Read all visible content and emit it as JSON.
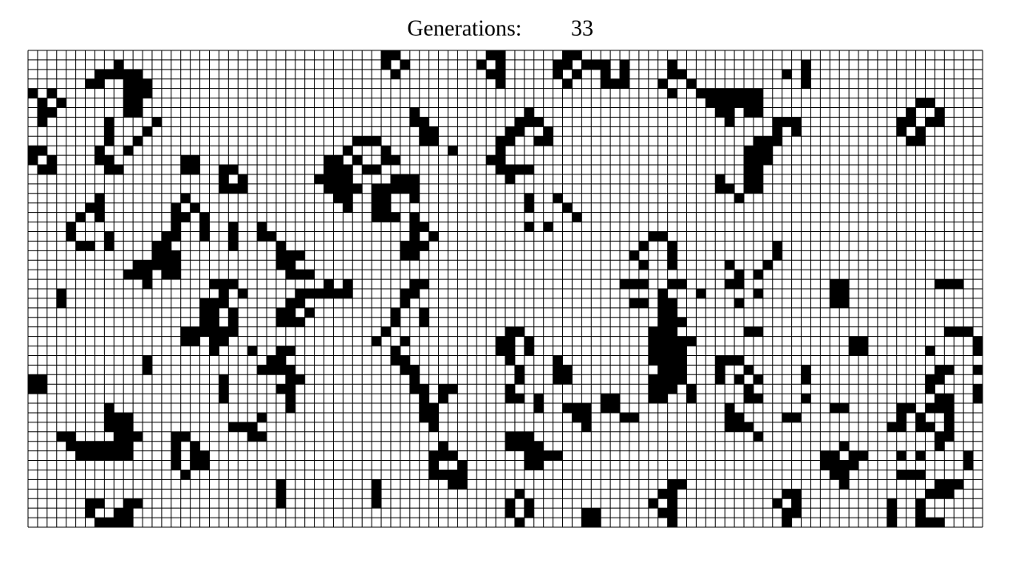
{
  "header": {
    "label": "Generations:",
    "generations": 33
  },
  "board": {
    "alive_by_row": [
      [
        37,
        38,
        48,
        49,
        56,
        57
      ],
      [
        9,
        37,
        39,
        47,
        49,
        55,
        56,
        58,
        59,
        60,
        62,
        67,
        81
      ],
      [
        7,
        8,
        9,
        10,
        11,
        38,
        48,
        49,
        55,
        57,
        60,
        62,
        67,
        68,
        79,
        81
      ],
      [
        6,
        7,
        10,
        11,
        12,
        49,
        56,
        60,
        61,
        62,
        66,
        69,
        81
      ],
      [
        0,
        2,
        10,
        11,
        12,
        67,
        70,
        71,
        72,
        73,
        74,
        75,
        76
      ],
      [
        1,
        3,
        10,
        11,
        71,
        72,
        73,
        74,
        75,
        76,
        93,
        94
      ],
      [
        1,
        2,
        10,
        11,
        40,
        52,
        72,
        73,
        75,
        76,
        92,
        95
      ],
      [
        1,
        8,
        13,
        40,
        41,
        51,
        52,
        53,
        73,
        78,
        79,
        80,
        91,
        92,
        94,
        95
      ],
      [
        8,
        12,
        41,
        42,
        50,
        51,
        54,
        78,
        80,
        91,
        93
      ],
      [
        8,
        11,
        34,
        35,
        36,
        41,
        42,
        49,
        50,
        53,
        54,
        76,
        77,
        78,
        92,
        93
      ],
      [
        0,
        1,
        7,
        10,
        33,
        37,
        44,
        49,
        75,
        76,
        77
      ],
      [
        0,
        2,
        7,
        8,
        16,
        17,
        31,
        32,
        34,
        37,
        38,
        48,
        49,
        75,
        76,
        77
      ],
      [
        1,
        2,
        8,
        9,
        16,
        17,
        20,
        21,
        31,
        32,
        33,
        35,
        36,
        49,
        50,
        51,
        52,
        75,
        76
      ],
      [
        20,
        22,
        30,
        31,
        32,
        33,
        38,
        39,
        40,
        50,
        72,
        75,
        76
      ],
      [
        20,
        21,
        22,
        31,
        32,
        33,
        34,
        36,
        37,
        38,
        39,
        40,
        72,
        73,
        75,
        76
      ],
      [
        7,
        16,
        32,
        33,
        36,
        37,
        40,
        52,
        55,
        74
      ],
      [
        6,
        7,
        15,
        17,
        33,
        36,
        37,
        52,
        56
      ],
      [
        5,
        7,
        15,
        16,
        18,
        36,
        37,
        38,
        40,
        57
      ],
      [
        4,
        15,
        18,
        21,
        24,
        40,
        41,
        52,
        54
      ],
      [
        4,
        8,
        14,
        15,
        18,
        21,
        24,
        25,
        40,
        42,
        65,
        66
      ],
      [
        5,
        6,
        8,
        13,
        14,
        21,
        26,
        39,
        40,
        41,
        64,
        67,
        78
      ],
      [
        13,
        14,
        15,
        26,
        27,
        28,
        39,
        40,
        63,
        67,
        78
      ],
      [
        11,
        12,
        13,
        14,
        15,
        26,
        27,
        64,
        67,
        73,
        77
      ],
      [
        10,
        11,
        12,
        14,
        15,
        27,
        28,
        29,
        74,
        76
      ],
      [
        12,
        19,
        20,
        21,
        31,
        33,
        40,
        41,
        62,
        63,
        64,
        67,
        68,
        73,
        74,
        84,
        85,
        95,
        96,
        97
      ],
      [
        3,
        20,
        22,
        28,
        29,
        30,
        31,
        32,
        33,
        39,
        40,
        66,
        70,
        76,
        84,
        85
      ],
      [
        3,
        18,
        19,
        20,
        27,
        28,
        39,
        63,
        64,
        66,
        67,
        74,
        84,
        85
      ],
      [
        18,
        19,
        21,
        26,
        27,
        29,
        38,
        41,
        66,
        67
      ],
      [
        18,
        19,
        21,
        26,
        27,
        28,
        38,
        41,
        66,
        67,
        68
      ],
      [
        16,
        17,
        18,
        19,
        20,
        21,
        37,
        50,
        51,
        65,
        66,
        67,
        75,
        76,
        96,
        97,
        98
      ],
      [
        16,
        17,
        19,
        20,
        36,
        39,
        49,
        50,
        52,
        65,
        66,
        67,
        68,
        69,
        86,
        87,
        99
      ],
      [
        19,
        23,
        26,
        27,
        38,
        49,
        50,
        52,
        65,
        66,
        67,
        68,
        86,
        87,
        94,
        99
      ],
      [
        12,
        25,
        26,
        38,
        39,
        50,
        55,
        65,
        66,
        67,
        68,
        72,
        73,
        74
      ],
      [
        12,
        24,
        25,
        26,
        27,
        39,
        40,
        51,
        55,
        56,
        66,
        67,
        68,
        72,
        75,
        81,
        95,
        96,
        99
      ],
      [
        0,
        1,
        20,
        27,
        28,
        40,
        51,
        55,
        56,
        65,
        66,
        67,
        68,
        72,
        74,
        76,
        81,
        94,
        95
      ],
      [
        0,
        1,
        20,
        26,
        27,
        40,
        41,
        43,
        44,
        50,
        65,
        66,
        67,
        69,
        75,
        94,
        99
      ],
      [
        20,
        27,
        41,
        43,
        50,
        51,
        53,
        60,
        61,
        65,
        66,
        69,
        75,
        76,
        81,
        95,
        96,
        99
      ],
      [
        8,
        27,
        41,
        42,
        53,
        56,
        57,
        58,
        60,
        61,
        73,
        84,
        85,
        91,
        92,
        94,
        95,
        96
      ],
      [
        8,
        9,
        10,
        24,
        41,
        42,
        57,
        58,
        62,
        63,
        73,
        74,
        79,
        80,
        91,
        93,
        96
      ],
      [
        8,
        9,
        10,
        21,
        22,
        23,
        42,
        58,
        73,
        74,
        75,
        90,
        91,
        93,
        94,
        96
      ],
      [
        3,
        4,
        9,
        10,
        11,
        15,
        16,
        23,
        24,
        50,
        51,
        52,
        76,
        95,
        96
      ],
      [
        4,
        5,
        6,
        7,
        8,
        9,
        10,
        15,
        17,
        43,
        50,
        51,
        52,
        53,
        85,
        95
      ],
      [
        5,
        6,
        7,
        8,
        9,
        10,
        15,
        17,
        18,
        42,
        43,
        44,
        52,
        53,
        54,
        55,
        83,
        84,
        86,
        87,
        91,
        93,
        98
      ],
      [
        15,
        17,
        18,
        42,
        45,
        52,
        53,
        83,
        84,
        85,
        86,
        98
      ],
      [
        16,
        42,
        43,
        44,
        45,
        84,
        85,
        91,
        92,
        93
      ],
      [
        26,
        36,
        44,
        45,
        67,
        68,
        85,
        95,
        96,
        97
      ],
      [
        26,
        36,
        51,
        66,
        67,
        79,
        80,
        94,
        95,
        96
      ],
      [
        6,
        7,
        10,
        11,
        26,
        36,
        50,
        52,
        65,
        67,
        78,
        80,
        90,
        93
      ],
      [
        6,
        9,
        10,
        50,
        52,
        58,
        59,
        66,
        67,
        79,
        80,
        90,
        93
      ],
      [
        7,
        8,
        9,
        10,
        51,
        58,
        59,
        67,
        79,
        90,
        93,
        94,
        95
      ]
    ]
  }
}
